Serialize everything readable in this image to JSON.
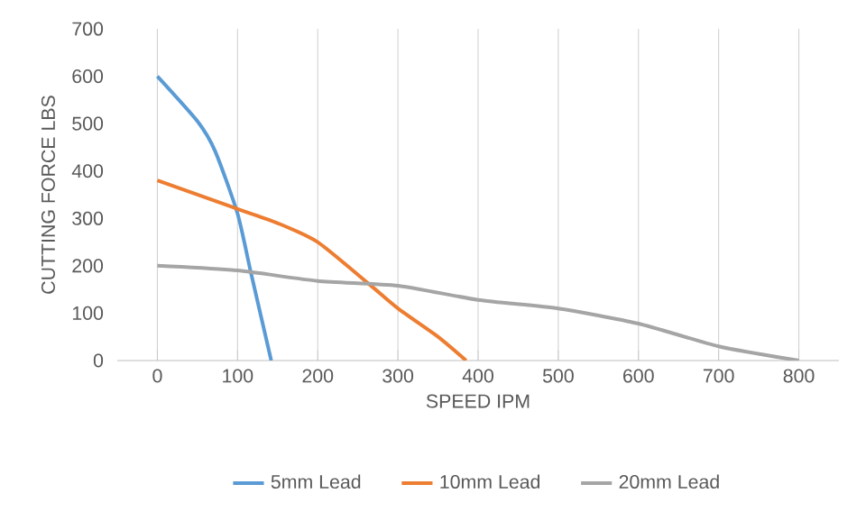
{
  "chart_data": {
    "type": "line",
    "xlabel": "SPEED IPM",
    "ylabel": "CUTTING FORCE LBS",
    "xlim": [
      -50,
      850
    ],
    "xticks": [
      0,
      100,
      200,
      300,
      400,
      500,
      600,
      700,
      800
    ],
    "ylim": [
      0,
      700
    ],
    "yticks": [
      0,
      100,
      200,
      300,
      400,
      500,
      600,
      700
    ],
    "grid": "x",
    "legend": "bottom",
    "marker": "none",
    "line_style": "solid",
    "series": [
      {
        "name": "5mm Lead",
        "color": "#5b9bd5",
        "x": [
          0,
          50,
          72,
          100,
          117,
          142
        ],
        "values": [
          600,
          505,
          442,
          310,
          183,
          0
        ]
      },
      {
        "name": "10mm Lead",
        "color": "#ed7d31",
        "x": [
          0,
          100,
          150,
          200,
          265,
          300,
          350,
          385
        ],
        "values": [
          380,
          320,
          290,
          250,
          160,
          110,
          50,
          0
        ]
      },
      {
        "name": "20mm Lead",
        "color": "#a5a5a5",
        "x": [
          0,
          100,
          200,
          300,
          400,
          500,
          600,
          700,
          800
        ],
        "values": [
          200,
          190,
          168,
          158,
          128,
          110,
          78,
          30,
          0
        ]
      }
    ]
  }
}
